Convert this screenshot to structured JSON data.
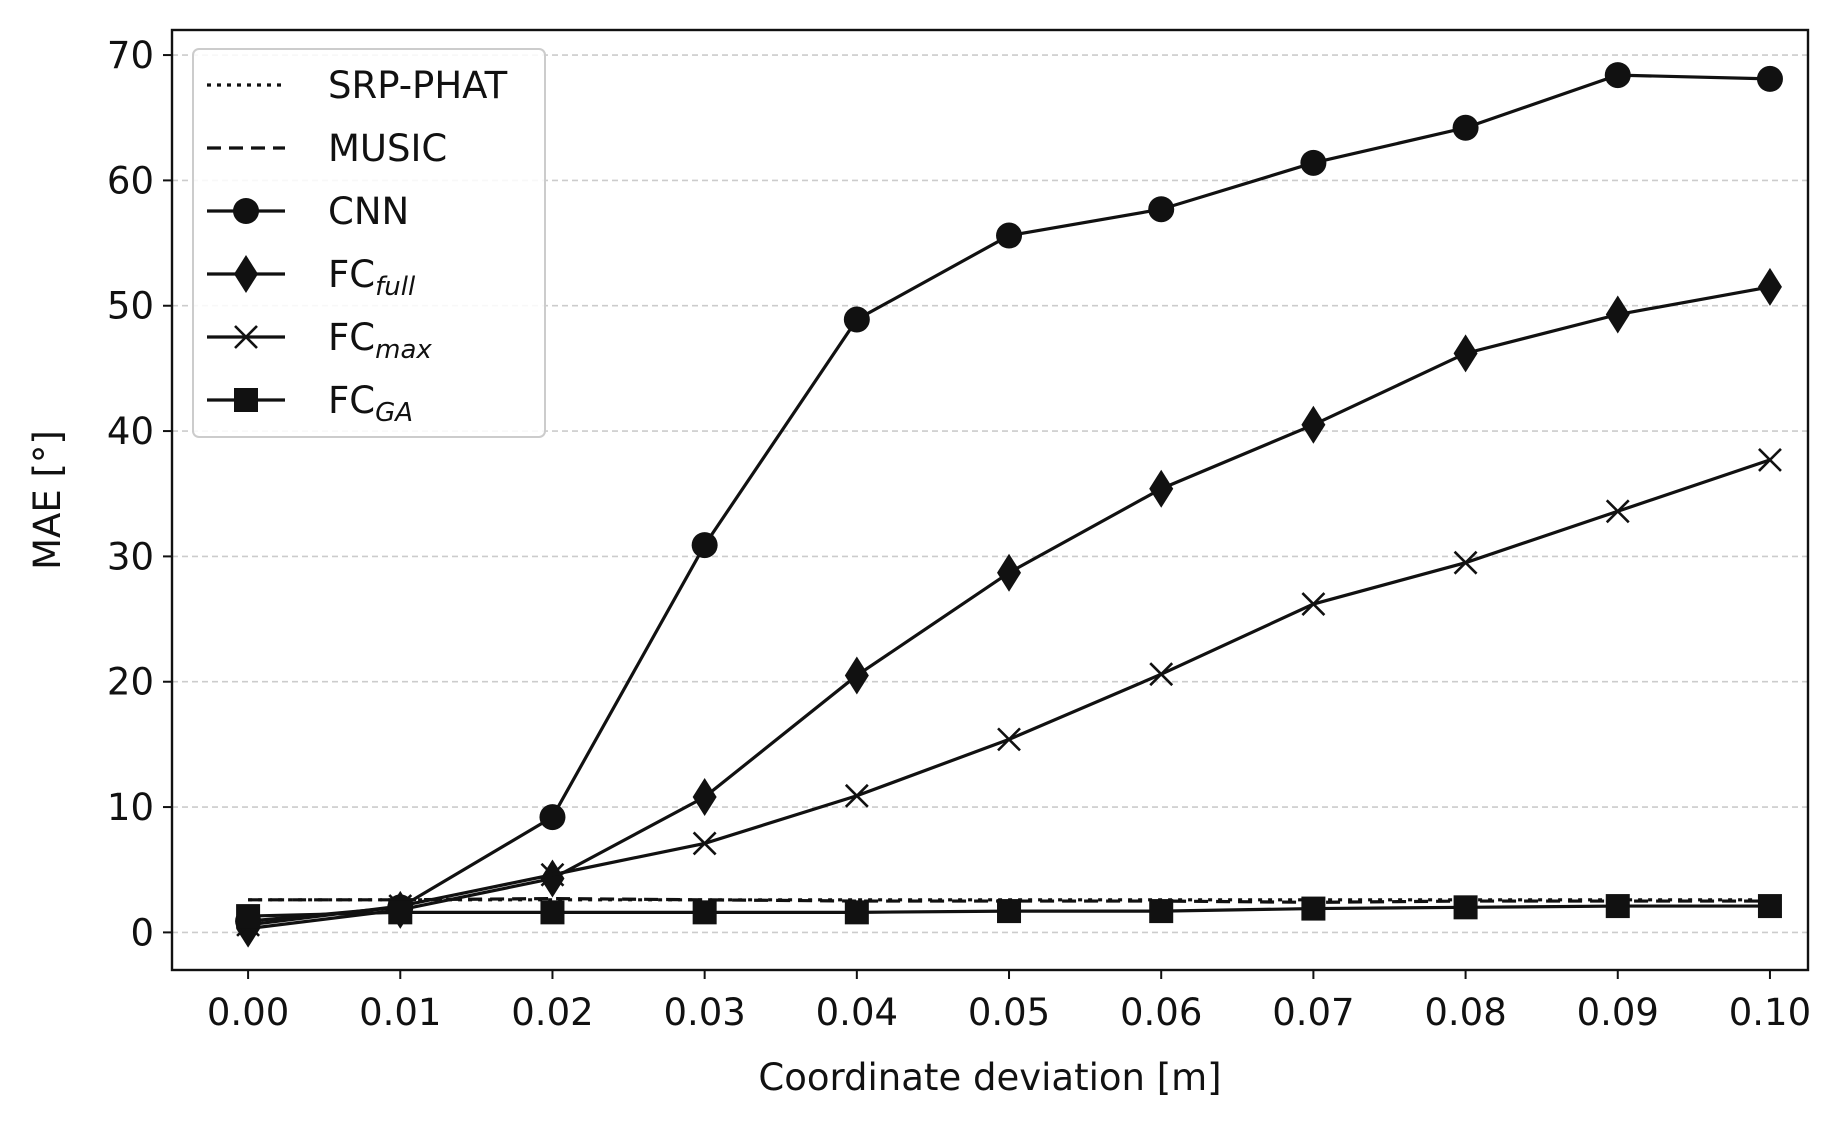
{
  "chart_data": {
    "type": "line",
    "title": "",
    "xlabel": "Coordinate deviation [m]",
    "ylabel": "MAE [°]",
    "x": [
      0.0,
      0.01,
      0.02,
      0.03,
      0.04,
      0.05,
      0.06,
      0.07,
      0.08,
      0.09,
      0.1
    ],
    "x_tick_labels": [
      "0.00",
      "0.01",
      "0.02",
      "0.03",
      "0.04",
      "0.05",
      "0.06",
      "0.07",
      "0.08",
      "0.09",
      "0.10"
    ],
    "y_ticks": [
      0,
      10,
      20,
      30,
      40,
      50,
      60,
      70
    ],
    "y_tick_labels": [
      "0",
      "10",
      "20",
      "30",
      "40",
      "50",
      "60",
      "70"
    ],
    "xlim": [
      -0.005,
      0.1025
    ],
    "ylim": [
      -3,
      72
    ],
    "grid": "horizontal dashed",
    "legend_position": "upper-left",
    "colors": {
      "line": "#111111",
      "grid": "#cccccc",
      "frame": "#111111",
      "legend_border": "#cccccc"
    },
    "series": [
      {
        "name": "SRP-PHAT",
        "name_base": "SRP-PHAT",
        "name_sub": "",
        "linestyle": "dotted",
        "marker": "none",
        "values": [
          2.6,
          2.6,
          2.6,
          2.6,
          2.6,
          2.6,
          2.6,
          2.6,
          2.6,
          2.6,
          2.6
        ]
      },
      {
        "name": "MUSIC",
        "name_base": "MUSIC",
        "name_sub": "",
        "linestyle": "dashed",
        "marker": "none",
        "values": [
          2.6,
          2.6,
          2.7,
          2.6,
          2.5,
          2.5,
          2.5,
          2.4,
          2.5,
          2.5,
          2.5
        ]
      },
      {
        "name": "CNN",
        "name_base": "CNN",
        "name_sub": "",
        "linestyle": "solid",
        "marker": "circle",
        "values": [
          0.9,
          2.0,
          9.2,
          30.9,
          48.9,
          55.6,
          57.7,
          61.4,
          64.2,
          68.4,
          68.1
        ]
      },
      {
        "name": "FCfull",
        "name_base": "FC",
        "name_sub": "full",
        "linestyle": "solid",
        "marker": "diamond",
        "values": [
          0.3,
          1.8,
          4.3,
          10.8,
          20.5,
          28.7,
          35.4,
          40.5,
          46.2,
          49.3,
          51.5
        ]
      },
      {
        "name": "FCmax",
        "name_base": "FC",
        "name_sub": "max",
        "linestyle": "solid",
        "marker": "x",
        "values": [
          0.6,
          2.1,
          4.6,
          7.1,
          10.9,
          15.4,
          20.6,
          26.2,
          29.5,
          33.6,
          37.7
        ]
      },
      {
        "name": "FCGA",
        "name_base": "FC",
        "name_sub": "GA",
        "linestyle": "solid",
        "marker": "square",
        "values": [
          1.3,
          1.6,
          1.6,
          1.6,
          1.6,
          1.7,
          1.7,
          1.9,
          2.0,
          2.1,
          2.1
        ]
      }
    ]
  }
}
